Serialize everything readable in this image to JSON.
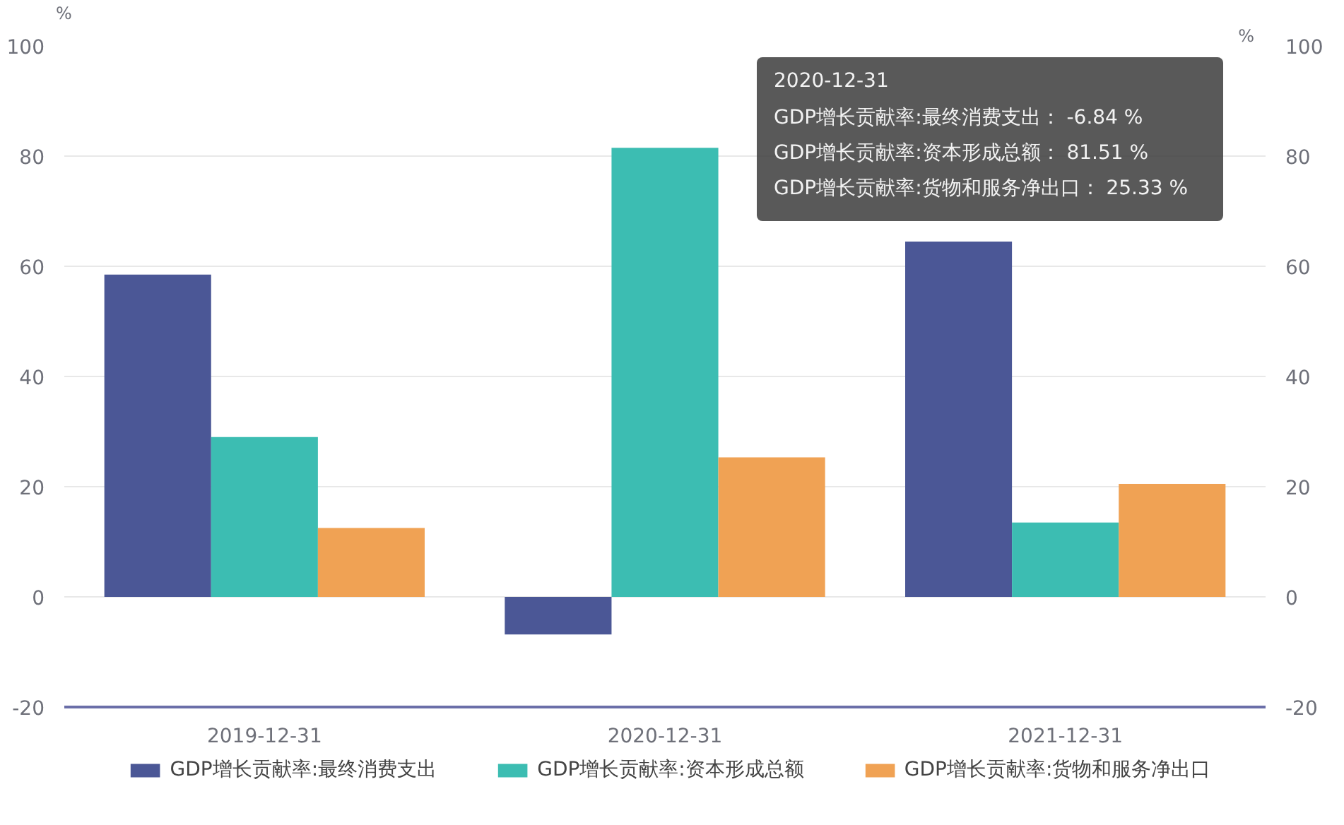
{
  "chart_data": {
    "type": "bar",
    "categories": [
      "2019-12-31",
      "2020-12-31",
      "2021-12-31"
    ],
    "series": [
      {
        "name": "GDP增长贡献率:最终消费支出",
        "color": "#4b5796",
        "values": [
          58.5,
          -6.84,
          64.5
        ]
      },
      {
        "name": "GDP增长贡献率:资本形成总额",
        "color": "#3cbdb2",
        "values": [
          29,
          81.51,
          13.5
        ]
      },
      {
        "name": "GDP增长贡献率:货物和服务净出口",
        "color": "#f0a254",
        "values": [
          12.5,
          25.33,
          20.5
        ]
      }
    ],
    "ylabel": "%",
    "y2label": "%",
    "ylim": [
      -20,
      100
    ],
    "yticks": [
      -20,
      0,
      20,
      40,
      60,
      80,
      100
    ],
    "y2lim": [
      -20,
      100
    ],
    "y2ticks": [
      -20,
      0,
      20,
      40,
      60,
      80,
      100
    ],
    "grid": "y",
    "legend": "bottom",
    "annotations": [
      "2020-12-31",
      "GDP增长贡献率:最终消费支出： -6.84 %",
      "GDP增长贡献率:资本形成总额： 81.51 %",
      "GDP增长贡献率:货物和服务净出口： 25.33 %"
    ]
  }
}
